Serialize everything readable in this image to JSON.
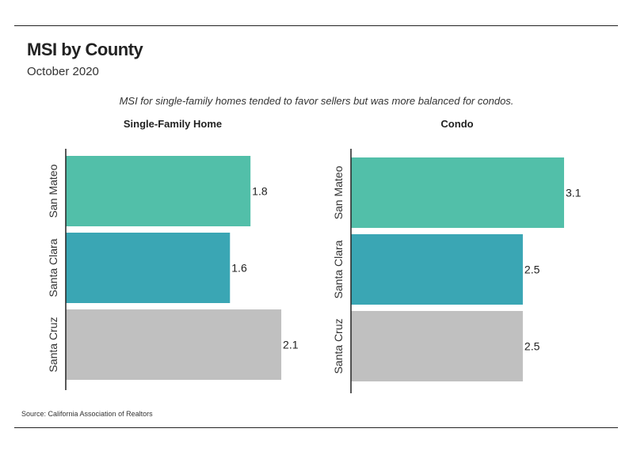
{
  "header": {
    "title": "MSI by County",
    "subtitle": "October 2020",
    "note": "MSI for single-family homes tended to favor sellers but was more balanced for condos."
  },
  "footer": {
    "source": "Source:  California Association of Realtors"
  },
  "chart_data": [
    {
      "type": "bar",
      "orientation": "horizontal",
      "title": "Single-Family Home",
      "categories": [
        "San Mateo",
        "Santa Clara",
        "Santa Cruz"
      ],
      "values": [
        1.8,
        1.6,
        2.1
      ],
      "value_labels": [
        "1.8",
        "1.6",
        "2.1"
      ],
      "colors": [
        "#52bfa9",
        "#3aa6b4",
        "#c0c0c0"
      ],
      "xlim": [
        0,
        2.2
      ],
      "grid": false
    },
    {
      "type": "bar",
      "orientation": "horizontal",
      "title": "Condo",
      "categories": [
        "San Mateo",
        "Santa Clara",
        "Santa Cruz"
      ],
      "values": [
        3.1,
        2.5,
        2.5
      ],
      "value_labels": [
        "3.1",
        "2.5",
        "2.5"
      ],
      "colors": [
        "#52bfa9",
        "#3aa6b4",
        "#c0c0c0"
      ],
      "xlim": [
        0,
        3.25
      ],
      "grid": false
    }
  ]
}
